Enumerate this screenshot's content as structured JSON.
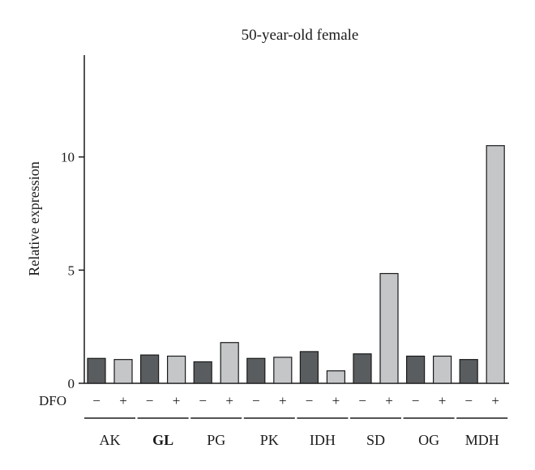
{
  "chart_data": {
    "type": "bar",
    "title": "50-year-old female",
    "ylabel": "Relative expression",
    "xlabel": "",
    "ylim": [
      0,
      14.5
    ],
    "yticks": [
      0,
      5,
      10
    ],
    "treatment_label": "DFO",
    "series_signs": [
      "−",
      "+"
    ],
    "categories": [
      "AK",
      "GL",
      "PG",
      "PK",
      "IDH",
      "SD",
      "OG",
      "MDH"
    ],
    "bold_categories": [
      "GL"
    ],
    "series": [
      {
        "values": [
          1.1,
          1.25,
          0.95,
          1.1,
          1.4,
          1.3,
          1.2,
          1.05
        ]
      },
      {
        "values": [
          1.05,
          1.2,
          1.8,
          1.15,
          0.55,
          4.85,
          1.2,
          10.5
        ]
      }
    ],
    "colors": {
      "minus": "#5a5d5f",
      "plus": "#c4c6c8"
    },
    "grid": false,
    "legend": "none"
  }
}
